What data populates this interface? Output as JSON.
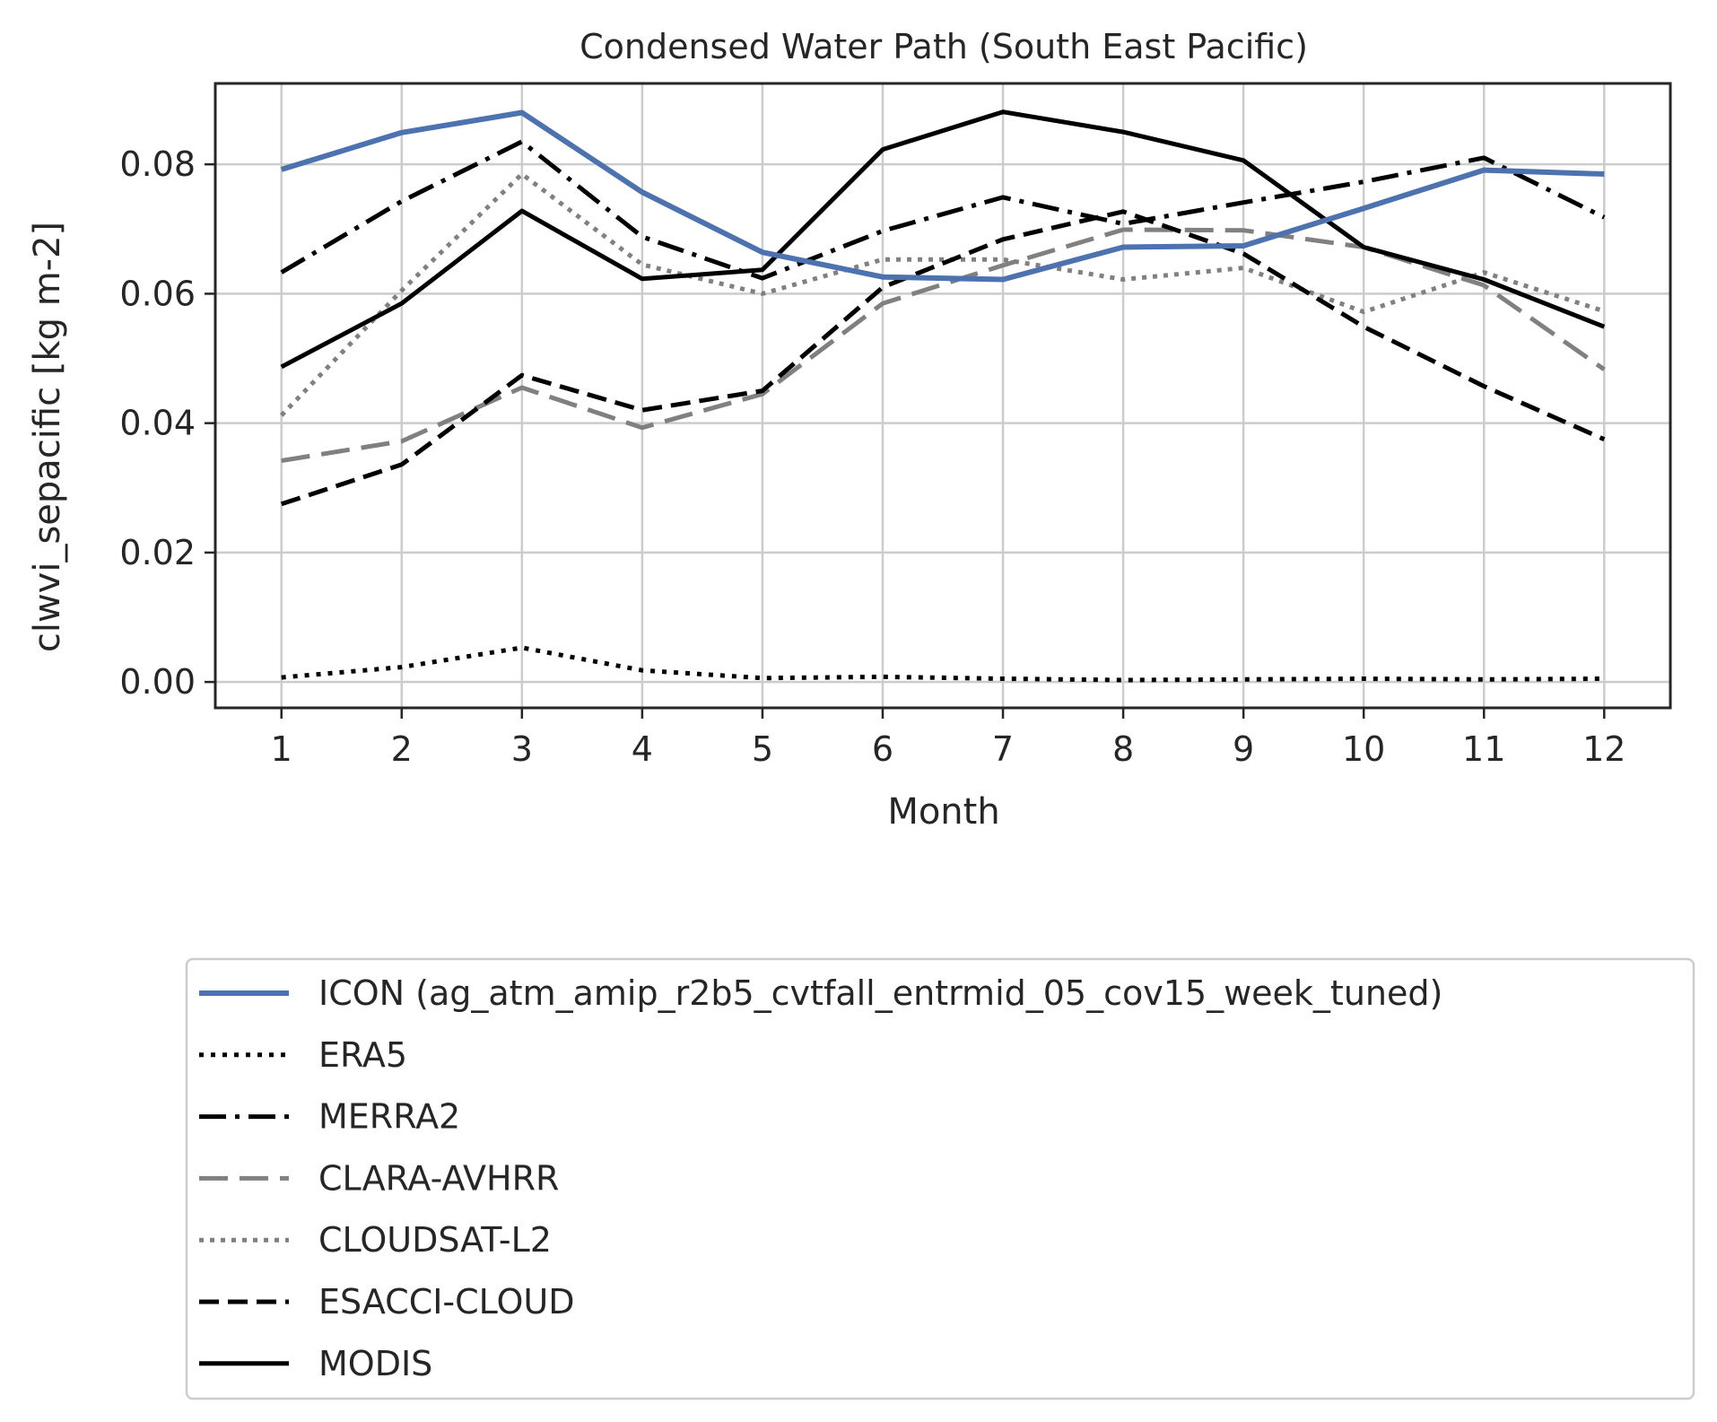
{
  "chart_data": {
    "type": "line",
    "title": "Condensed Water Path (South East Pacific)",
    "xlabel": "Month",
    "ylabel": "clwvi_sepacific [kg m-2]",
    "x": [
      1,
      2,
      3,
      4,
      5,
      6,
      7,
      8,
      9,
      10,
      11,
      12
    ],
    "x_ticks": [
      "1",
      "2",
      "3",
      "4",
      "5",
      "6",
      "7",
      "8",
      "9",
      "10",
      "11",
      "12"
    ],
    "xlim": [
      0.45,
      12.55
    ],
    "ylim": [
      -0.004,
      0.0925
    ],
    "y_ticks": [
      "0.00",
      "0.02",
      "0.04",
      "0.06",
      "0.08"
    ],
    "y_tick_values": [
      0.0,
      0.02,
      0.04,
      0.06,
      0.08
    ],
    "grid": true,
    "legend_position": "below",
    "series": [
      {
        "name": "ICON (ag_atm_amip_r2b5_cvtfall_entrmid_05_cov15_week_tuned)",
        "style": "solid",
        "color": "#4C72B0",
        "width": 6,
        "values": [
          0.0792,
          0.0849,
          0.088,
          0.0757,
          0.0664,
          0.0626,
          0.0622,
          0.0672,
          0.0674,
          0.0732,
          0.0791,
          0.0785
        ]
      },
      {
        "name": "ERA5",
        "style": "dotted",
        "color": "#000000",
        "width": 5,
        "values": [
          0.0007,
          0.0023,
          0.0053,
          0.0018,
          0.0006,
          0.0008,
          0.0005,
          0.0003,
          0.0004,
          0.0005,
          0.0004,
          0.0005
        ]
      },
      {
        "name": "MERRA2",
        "style": "dashdot",
        "color": "#000000",
        "width": 5,
        "values": [
          0.0633,
          0.0743,
          0.0835,
          0.0688,
          0.0624,
          0.0697,
          0.0749,
          0.0708,
          0.0741,
          0.0773,
          0.081,
          0.0718
        ]
      },
      {
        "name": "CLARA-AVHRR",
        "style": "longdash",
        "color": "#808080",
        "width": 5,
        "values": [
          0.0342,
          0.0372,
          0.0455,
          0.0393,
          0.0445,
          0.0585,
          0.0644,
          0.0699,
          0.0698,
          0.0672,
          0.0613,
          0.0483
        ]
      },
      {
        "name": "CLOUDSAT-L2",
        "style": "dotted",
        "color": "#808080",
        "width": 5,
        "values": [
          0.0412,
          0.0605,
          0.0785,
          0.0645,
          0.06,
          0.0653,
          0.0653,
          0.0622,
          0.064,
          0.0572,
          0.0633,
          0.0573
        ]
      },
      {
        "name": "ESACCI-CLOUD",
        "style": "dashed",
        "color": "#000000",
        "width": 5,
        "values": [
          0.0275,
          0.0336,
          0.0474,
          0.042,
          0.045,
          0.061,
          0.0684,
          0.0727,
          0.0662,
          0.0549,
          0.0457,
          0.0375
        ]
      },
      {
        "name": "MODIS",
        "style": "solid",
        "color": "#000000",
        "width": 5,
        "values": [
          0.0487,
          0.0585,
          0.0728,
          0.0623,
          0.0637,
          0.0823,
          0.0881,
          0.085,
          0.0806,
          0.0672,
          0.0622,
          0.0549
        ]
      }
    ]
  }
}
